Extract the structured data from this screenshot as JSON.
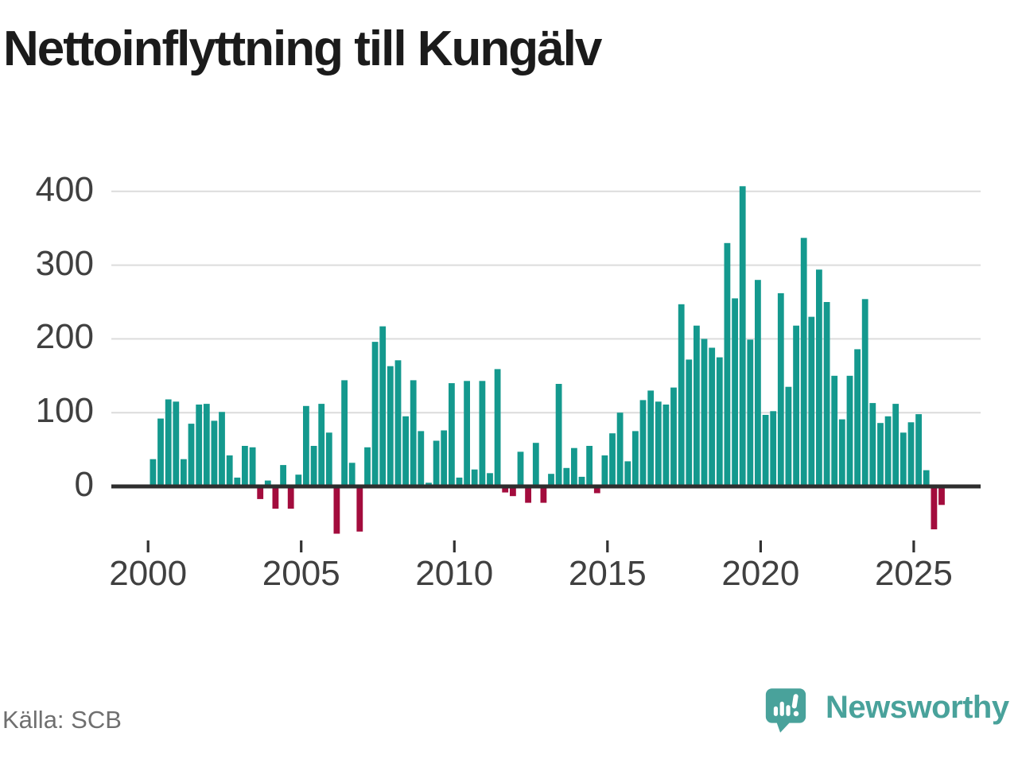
{
  "header": {
    "title": "Nettoinflyttning till Kungälv"
  },
  "footer": {
    "source": "Källa: SCB",
    "brand_name": "Newsworthy"
  },
  "colors": {
    "positive_bar": "#14998e",
    "negative_bar": "#a30c3d",
    "grid": "#dcdcdc",
    "axis_line": "#2e2e2e",
    "tick_mark": "#333333",
    "axis_text": "#404040",
    "title_text": "#1b1b1b",
    "source_text": "#6f6f6f",
    "brand": "#49a29b"
  },
  "chart_data": {
    "type": "bar",
    "title": "Nettoinflyttning till Kungälv",
    "frequency": "quarterly",
    "grid": "horizontal",
    "legend": "none",
    "bar_color_rule": "teal when value >= 0, crimson when value < 0",
    "xlabel": "",
    "ylabel": "",
    "ylim": [
      -75,
      430
    ],
    "yticks": [
      0,
      100,
      200,
      300,
      400
    ],
    "y_tick_labels": [
      "0",
      "100",
      "200",
      "300",
      "400"
    ],
    "x_tick_years": [
      2000,
      2005,
      2010,
      2015,
      2020,
      2025
    ],
    "x_tick_labels": [
      "2000",
      "2005",
      "2010",
      "2015",
      "2020",
      "2025"
    ],
    "periods": [
      "2000 Q1",
      "2000 Q2",
      "2000 Q3",
      "2000 Q4",
      "2001 Q1",
      "2001 Q2",
      "2001 Q3",
      "2001 Q4",
      "2002 Q1",
      "2002 Q2",
      "2002 Q3",
      "2002 Q4",
      "2003 Q1",
      "2003 Q2",
      "2003 Q3",
      "2003 Q4",
      "2004 Q1",
      "2004 Q2",
      "2004 Q3",
      "2004 Q4",
      "2005 Q1",
      "2005 Q2",
      "2005 Q3",
      "2005 Q4",
      "2006 Q1",
      "2006 Q2",
      "2006 Q3",
      "2006 Q4",
      "2007 Q1",
      "2007 Q2",
      "2007 Q3",
      "2007 Q4",
      "2008 Q1",
      "2008 Q2",
      "2008 Q3",
      "2008 Q4",
      "2009 Q1",
      "2009 Q2",
      "2009 Q3",
      "2009 Q4",
      "2010 Q1",
      "2010 Q2",
      "2010 Q3",
      "2010 Q4",
      "2011 Q1",
      "2011 Q2",
      "2011 Q3",
      "2011 Q4",
      "2012 Q1",
      "2012 Q2",
      "2012 Q3",
      "2012 Q4",
      "2013 Q1",
      "2013 Q2",
      "2013 Q3",
      "2013 Q4",
      "2014 Q1",
      "2014 Q2",
      "2014 Q3",
      "2014 Q4",
      "2015 Q1",
      "2015 Q2",
      "2015 Q3",
      "2015 Q4",
      "2016 Q1",
      "2016 Q2",
      "2016 Q3",
      "2016 Q4",
      "2017 Q1",
      "2017 Q2",
      "2017 Q3",
      "2017 Q4",
      "2018 Q1",
      "2018 Q2",
      "2018 Q3",
      "2018 Q4",
      "2019 Q1",
      "2019 Q2",
      "2019 Q3",
      "2019 Q4",
      "2020 Q1",
      "2020 Q2",
      "2020 Q3",
      "2020 Q4",
      "2021 Q1",
      "2021 Q2",
      "2021 Q3",
      "2021 Q4",
      "2022 Q1",
      "2022 Q2",
      "2022 Q3",
      "2022 Q4",
      "2023 Q1",
      "2023 Q2",
      "2023 Q3",
      "2023 Q4",
      "2024 Q1",
      "2024 Q2",
      "2024 Q3",
      "2024 Q4",
      "2025 Q1",
      "2025 Q2",
      "2025 Q3",
      "2025 Q4"
    ],
    "values": [
      37,
      92,
      118,
      115,
      37,
      85,
      111,
      112,
      89,
      101,
      42,
      12,
      55,
      53,
      -15,
      8,
      -28,
      29,
      -28,
      16,
      109,
      55,
      112,
      73,
      -62,
      144,
      32,
      -59,
      53,
      196,
      217,
      163,
      171,
      95,
      144,
      75,
      5,
      62,
      76,
      140,
      12,
      143,
      23,
      143,
      18,
      159,
      -6,
      -11,
      47,
      -20,
      59,
      -20,
      17,
      139,
      25,
      52,
      13,
      55,
      -7,
      42,
      72,
      100,
      34,
      75,
      117,
      130,
      115,
      111,
      134,
      247,
      172,
      218,
      200,
      188,
      175,
      330,
      255,
      407,
      199,
      280,
      97,
      102,
      262,
      135,
      218,
      337,
      230,
      294,
      250,
      150,
      91,
      150,
      186,
      254,
      113,
      86,
      95,
      112,
      73,
      87,
      98,
      22,
      -56,
      -23
    ]
  }
}
